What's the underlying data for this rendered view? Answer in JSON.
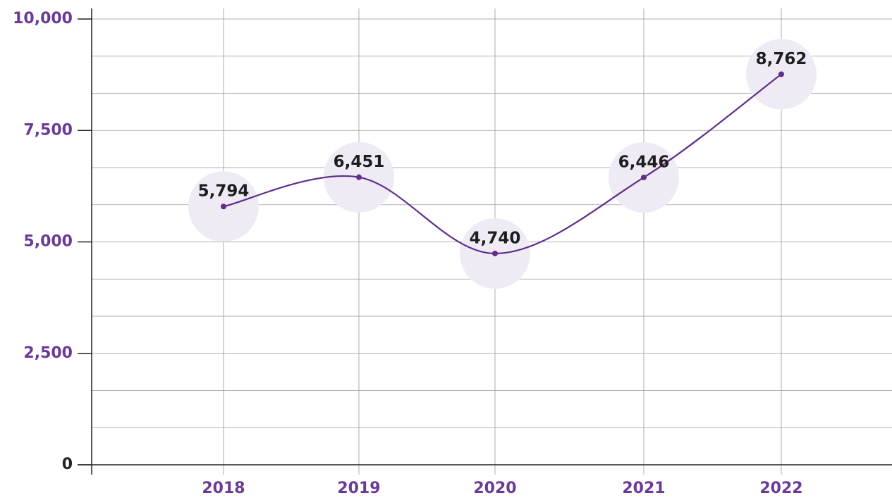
{
  "chart_data": {
    "type": "line",
    "categories": [
      "2018",
      "2019",
      "2020",
      "2021",
      "2022"
    ],
    "series": [
      {
        "name": "Value",
        "color": "#5f2d8c",
        "values": [
          5794,
          6451,
          4740,
          6446,
          8762
        ]
      }
    ],
    "ylim": [
      0,
      10000
    ],
    "yticks": [
      0,
      {
        "value": 2500,
        "label": "2,500"
      },
      {
        "value": 5000,
        "label": "5,000"
      },
      {
        "value": 7500,
        "label": "7,500"
      },
      {
        "value": 10000,
        "label": "10,000"
      }
    ],
    "value_labels": [
      "5,794",
      "6,451",
      "4,740",
      "6,446",
      "8,762"
    ],
    "grid": true
  }
}
